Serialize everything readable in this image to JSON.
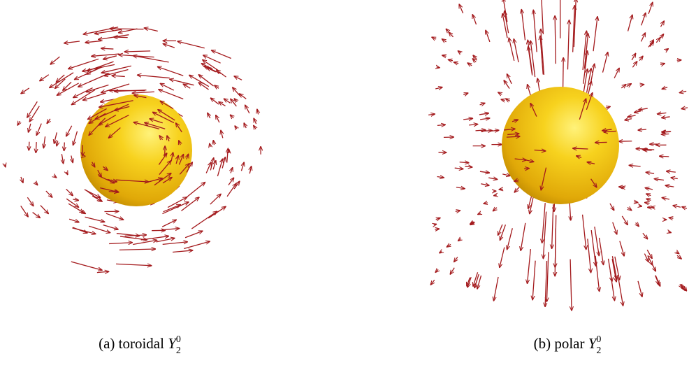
{
  "panels": [
    {
      "label": "(a)",
      "text": "toroidal",
      "symbol": "Y",
      "sub": "2",
      "sup": "0"
    },
    {
      "label": "(b)",
      "text": "polar",
      "symbol": "Y",
      "sub": "2",
      "sup": "0"
    }
  ]
}
